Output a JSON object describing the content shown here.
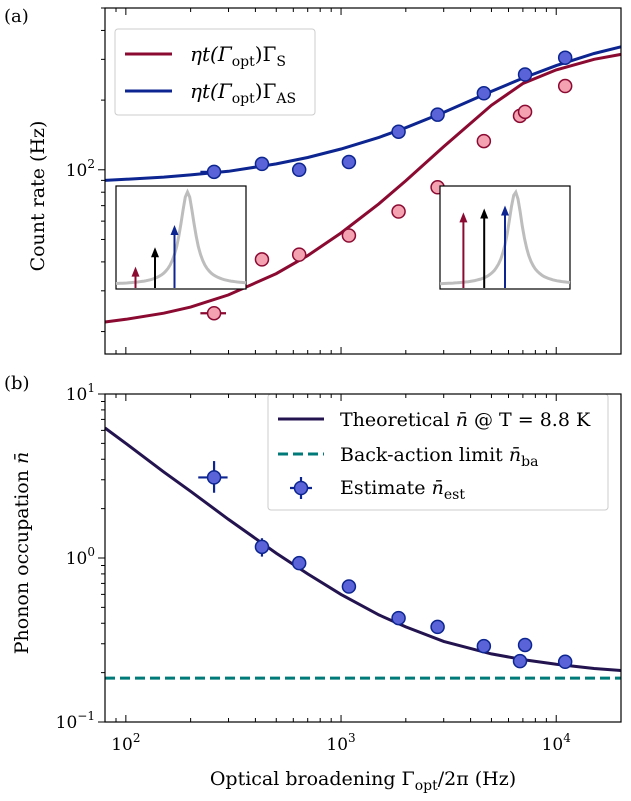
{
  "chart_data": [
    {
      "panel_label": "(a)",
      "type": "scatter",
      "ylabel": "Count rate (Hz)",
      "yscale": "log",
      "xscale": "log",
      "xlim": [
        80,
        20000
      ],
      "ylim": [
        16,
        500
      ],
      "y_tick_labels": [
        "10^2"
      ],
      "legend_position": "top-left",
      "series": [
        {
          "name": "ηt(Γopt)ΓS",
          "legend_main": "ηt(Γ",
          "legend_sub1": "opt",
          "legend_mid": ")Γ",
          "legend_sub2": "S",
          "color": "#8b0a32",
          "marker_fill": "#f4a1b2",
          "x": [
            257,
            429,
            639,
            1088,
            1851,
            2810,
            4610,
            6787,
            7164,
            11006
          ],
          "y": [
            24,
            41,
            43,
            52,
            66,
            84,
            133,
            171,
            178,
            230
          ],
          "xerr": [
            35,
            25,
            0,
            0,
            0,
            0,
            0,
            0,
            0,
            0
          ],
          "curve": {
            "x": [
              80,
              100,
              150,
              200,
              300,
              500,
              700,
              1000,
              1500,
              2000,
              3000,
              5000,
              7000,
              10000,
              15000,
              20000
            ],
            "y": [
              22,
              22.6,
              24.0,
              25.5,
              28.8,
              35.6,
              42.6,
              53.3,
              71.3,
              89.6,
              126,
              190,
              236,
              270,
              300,
              315
            ]
          }
        },
        {
          "name": "ηt(Γopt)ΓAS",
          "legend_main": "ηt(Γ",
          "legend_sub1": "opt",
          "legend_mid": ")Γ",
          "legend_sub2": "AS",
          "color": "#0c2590",
          "marker_fill": "#5a64d8",
          "x": [
            257,
            429,
            639,
            1088,
            1851,
            2810,
            4610,
            7164,
            11006
          ],
          "y": [
            98,
            106,
            100,
            108,
            146,
            173,
            214,
            258,
            305
          ],
          "xerr": [
            35,
            0,
            0,
            0,
            0,
            0,
            0,
            0,
            0
          ],
          "curve": {
            "x": [
              80,
              100,
              150,
              200,
              300,
              500,
              700,
              1000,
              1500,
              2000,
              3000,
              5000,
              7000,
              10000,
              15000,
              20000
            ],
            "y": [
              90,
              91,
              93,
              95,
              98.5,
              106,
              113,
              123,
              138,
              152,
              177,
              218,
              249,
              282,
              318,
              340
            ]
          }
        }
      ],
      "insets": [
        {
          "position": "left",
          "arrows": [
            {
              "color": "#8b0a32",
              "x": 0.15,
              "height": 0.22
            },
            {
              "color": "#000000",
              "x": 0.3,
              "height": 0.42
            },
            {
              "color": "#0c2590",
              "x": 0.45,
              "height": 0.65
            }
          ],
          "peak_x": 0.55
        },
        {
          "position": "right",
          "arrows": [
            {
              "color": "#8b0a32",
              "x": 0.18,
              "height": 0.78
            },
            {
              "color": "#000000",
              "x": 0.34,
              "height": 0.82
            },
            {
              "color": "#0c2590",
              "x": 0.5,
              "height": 0.85
            }
          ],
          "peak_x": 0.58
        }
      ]
    },
    {
      "panel_label": "(b)",
      "type": "scatter",
      "xlabel_main": "Optical broadening Γ",
      "xlabel_sub": "opt",
      "xlabel_tail": "/2π (Hz)",
      "ylabel_main": "Phonon occupation ",
      "ylabel_nbar": "n̄",
      "xscale": "log",
      "yscale": "log",
      "xlim": [
        80,
        20000
      ],
      "ylim": [
        0.1,
        10
      ],
      "x_tick_values": [
        100,
        1000,
        10000
      ],
      "x_tick_labels": [
        "10^2",
        "10^3",
        "10^4"
      ],
      "y_tick_values": [
        0.1,
        1,
        10
      ],
      "y_tick_labels": [
        "10^-1",
        "10^0",
        "10^1"
      ],
      "legend_position": "top-right",
      "legend": [
        {
          "kind": "line",
          "color": "#23134f",
          "main": "Theoretical ",
          "nbar": "n̄",
          "tail": " @ T = 8.8 K",
          "sub": ""
        },
        {
          "kind": "dash",
          "color": "#007a78",
          "main": "Back-action limit ",
          "nbar": "n̄",
          "tail": "",
          "sub": "ba"
        },
        {
          "kind": "marker",
          "color": "#0c2590",
          "main": "Estimate ",
          "nbar": "n̄",
          "tail": "",
          "sub": "est"
        }
      ],
      "theory": {
        "name": "Theoretical n̄ @ T = 8.8 K",
        "color": "#23134f",
        "x": [
          80,
          100,
          150,
          200,
          300,
          500,
          700,
          1000,
          1500,
          2000,
          3000,
          5000,
          7000,
          10000,
          15000,
          20000
        ],
        "y": [
          6.2,
          5.0,
          3.35,
          2.55,
          1.72,
          1.07,
          0.8,
          0.6,
          0.45,
          0.38,
          0.31,
          0.26,
          0.24,
          0.225,
          0.212,
          0.206
        ]
      },
      "backaction": {
        "name": "Back-action limit n̄ba",
        "color": "#007a78",
        "y": 0.185
      },
      "estimate": {
        "name": "Estimate n̄est",
        "color": "#0c2590",
        "marker_fill": "#5a64d8",
        "x": [
          257,
          429,
          639,
          1088,
          1851,
          2810,
          4610,
          6787,
          7164,
          11006
        ],
        "y": [
          3.1,
          1.17,
          0.93,
          0.67,
          0.43,
          0.38,
          0.29,
          0.235,
          0.295,
          0.233
        ],
        "yerr_lo": [
          0.6,
          0.15,
          0,
          0,
          0,
          0,
          0,
          0,
          0,
          0
        ],
        "yerr_hi": [
          0.8,
          0.15,
          0,
          0,
          0,
          0,
          0,
          0,
          0,
          0
        ],
        "xerr": [
          40,
          0,
          0,
          0,
          0,
          0,
          0,
          0,
          0,
          0
        ]
      }
    }
  ]
}
